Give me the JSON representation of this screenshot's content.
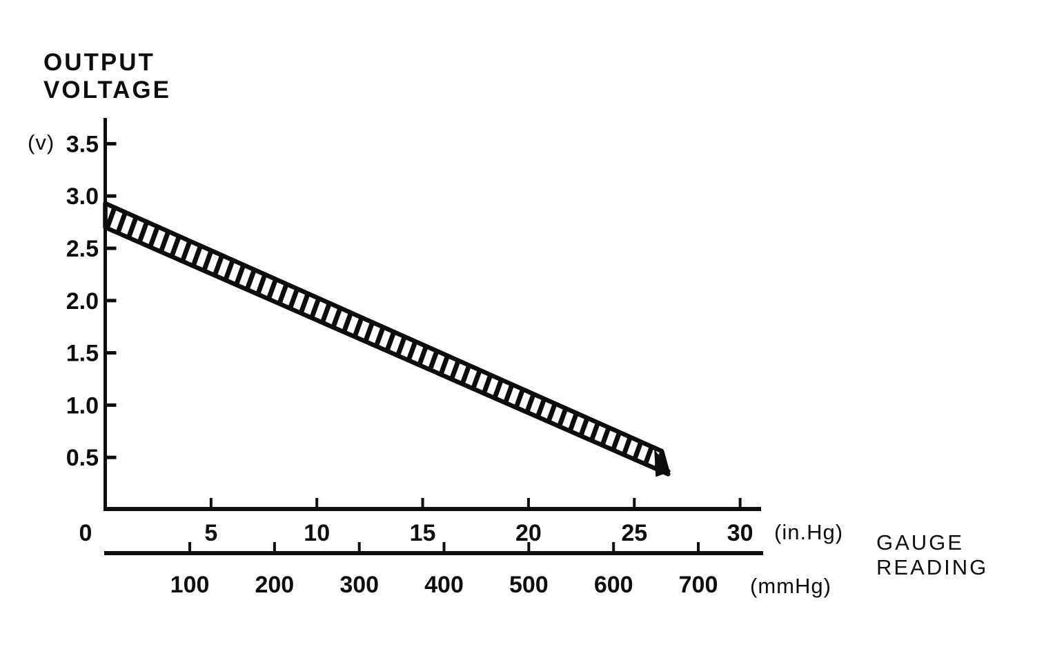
{
  "colors": {
    "ink": "#0d0d0d",
    "paper": "#ffffff"
  },
  "chart_data": {
    "type": "area",
    "title": "Output voltage vs gauge reading (hatched tolerance band)",
    "y_axis": {
      "label_lines": [
        "OUTPUT",
        "VOLTAGE"
      ],
      "unit": "(v)",
      "ticks": [
        3.5,
        3.0,
        2.5,
        2.0,
        1.5,
        1.0,
        0.5
      ],
      "range": [
        0,
        3.75
      ]
    },
    "x_axis_primary": {
      "unit": "(in.Hg)",
      "ticks": [
        0,
        5,
        10,
        15,
        20,
        25,
        30
      ],
      "range": [
        0,
        31
      ]
    },
    "x_axis_secondary": {
      "unit": "(mmHg)",
      "ticks": [
        100,
        200,
        300,
        400,
        500,
        600,
        700
      ],
      "range": [
        0,
        777
      ]
    },
    "x_axis_title_lines": [
      "GAUGE",
      "READING"
    ],
    "band": {
      "style": "hatched",
      "upper_limit": {
        "x_inHg": [
          0,
          26.3
        ],
        "y_v": [
          2.93,
          0.56
        ]
      },
      "lower_limit": {
        "x_inHg": [
          0,
          26.6
        ],
        "y_v": [
          2.7,
          0.34
        ]
      }
    },
    "legend": null,
    "grid": false
  }
}
